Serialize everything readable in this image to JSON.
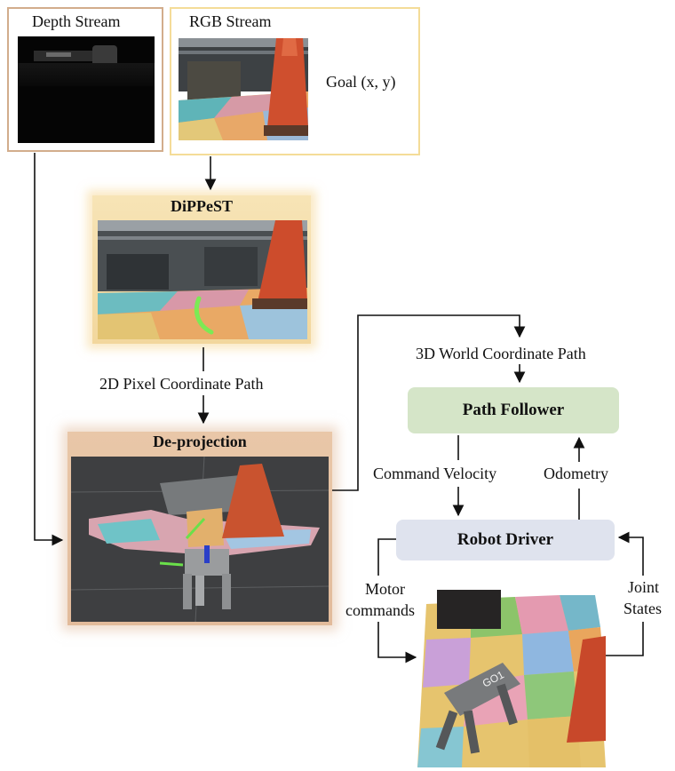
{
  "depth_stream": {
    "label": "Depth Stream"
  },
  "rgb_stream": {
    "label": "RGB Stream",
    "goal_label": "Goal (x, y)"
  },
  "dippest": {
    "title": "DiPPeST"
  },
  "pixel_path_label": "2D Pixel Coordinate Path",
  "deprojection": {
    "title": "De-projection"
  },
  "world_path_label": "3D World Coordinate Path",
  "path_follower": {
    "title": "Path Follower"
  },
  "command_velocity_label": "Command Velocity",
  "odometry_label": "Odometry",
  "robot_driver": {
    "title": "Robot Driver"
  },
  "motor_commands_label": [
    "Motor",
    "commands"
  ],
  "joint_states_label": [
    "Joint",
    "States"
  ],
  "robot_photo": {
    "robot_marking": "GO1"
  }
}
